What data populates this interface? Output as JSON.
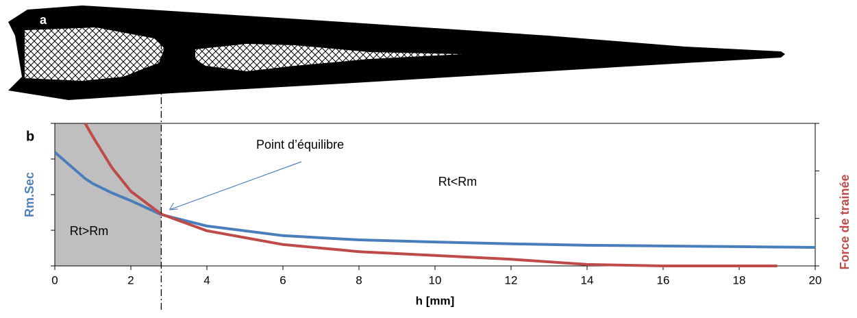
{
  "panel_labels": [
    "a",
    "b"
  ],
  "chart_data": {
    "type": "line",
    "xlabel": "h [mm]",
    "ylabel": "Rm.Sec",
    "y2label": "Force de trainée",
    "x": [
      0,
      0.8,
      1,
      1.5,
      2,
      2.8,
      4,
      6,
      8,
      10,
      12,
      14,
      16,
      18,
      19,
      20
    ],
    "series": [
      {
        "color": "#4a7ebb",
        "ylabel_color": "#4f81bd",
        "values": [
          3.19,
          2.45,
          2.31,
          2.05,
          1.83,
          1.44,
          1.12,
          0.85,
          0.73,
          0.67,
          0.62,
          0.58,
          0.56,
          0.54,
          0.53,
          0.52
        ]
      },
      {
        "color": "#be4b48",
        "axis": "y2",
        "values": [
          null,
          3.0,
          2.72,
          2.07,
          1.57,
          1.09,
          0.74,
          0.45,
          0.3,
          0.22,
          0.14,
          0.03,
          0,
          0,
          0,
          null
        ]
      }
    ],
    "xlim": [
      0,
      20
    ],
    "xticks": [
      0,
      2,
      4,
      6,
      8,
      10,
      12,
      14,
      16,
      18,
      20
    ],
    "ylim": [
      0,
      4
    ],
    "yticks": [
      0,
      1,
      2,
      3,
      4
    ],
    "y2lim": [
      0,
      3
    ],
    "y2ticks": [
      0,
      1,
      2,
      3
    ],
    "shaded_region": [
      0,
      2.8
    ],
    "equilibrium_x": 2.8,
    "annotations": [
      "Point d’équilibre",
      "Rt<Rm",
      "Rt>Rm"
    ]
  }
}
